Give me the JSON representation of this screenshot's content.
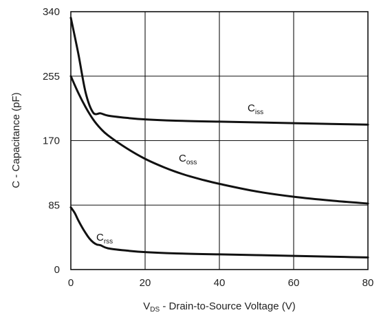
{
  "chart_data": {
    "type": "line",
    "title": "",
    "xlabel": {
      "prefix": "V",
      "sub": "DS",
      "suffix": " - Drain-to-Source Voltage (V)"
    },
    "ylabel": "C - Capacitance (pF)",
    "xlim": [
      0,
      80
    ],
    "ylim": [
      0,
      340
    ],
    "xticks": [
      0,
      20,
      40,
      60,
      80
    ],
    "yticks": [
      0,
      85,
      170,
      255,
      340
    ],
    "grid": true,
    "legend": "none",
    "series": [
      {
        "name": "Ciss",
        "label_main": "C",
        "label_sub": "iss",
        "x": [
          0,
          2,
          4,
          6,
          8,
          10,
          15,
          20,
          30,
          40,
          50,
          60,
          70,
          80
        ],
        "y": [
          332,
          285,
          233,
          207,
          206,
          203,
          200,
          198,
          196,
          195,
          194,
          193,
          192,
          191
        ]
      },
      {
        "name": "Coss",
        "label_main": "C",
        "label_sub": "oss",
        "x": [
          0,
          2,
          4,
          6,
          8,
          10,
          15,
          20,
          25,
          30,
          35,
          40,
          50,
          60,
          70,
          80
        ],
        "y": [
          255,
          233,
          214,
          198,
          186,
          177,
          160,
          146,
          135,
          126,
          119,
          113,
          103,
          96,
          91,
          87
        ]
      },
      {
        "name": "Crss",
        "label_main": "C",
        "label_sub": "rss",
        "x": [
          0,
          1,
          2,
          3,
          4,
          5,
          6,
          7,
          8,
          10,
          15,
          20,
          30,
          40,
          50,
          60,
          70,
          80
        ],
        "y": [
          82,
          75,
          65,
          56,
          48,
          41,
          36,
          33,
          32,
          28,
          25,
          23,
          21,
          20,
          19,
          18,
          17,
          16
        ]
      }
    ]
  }
}
